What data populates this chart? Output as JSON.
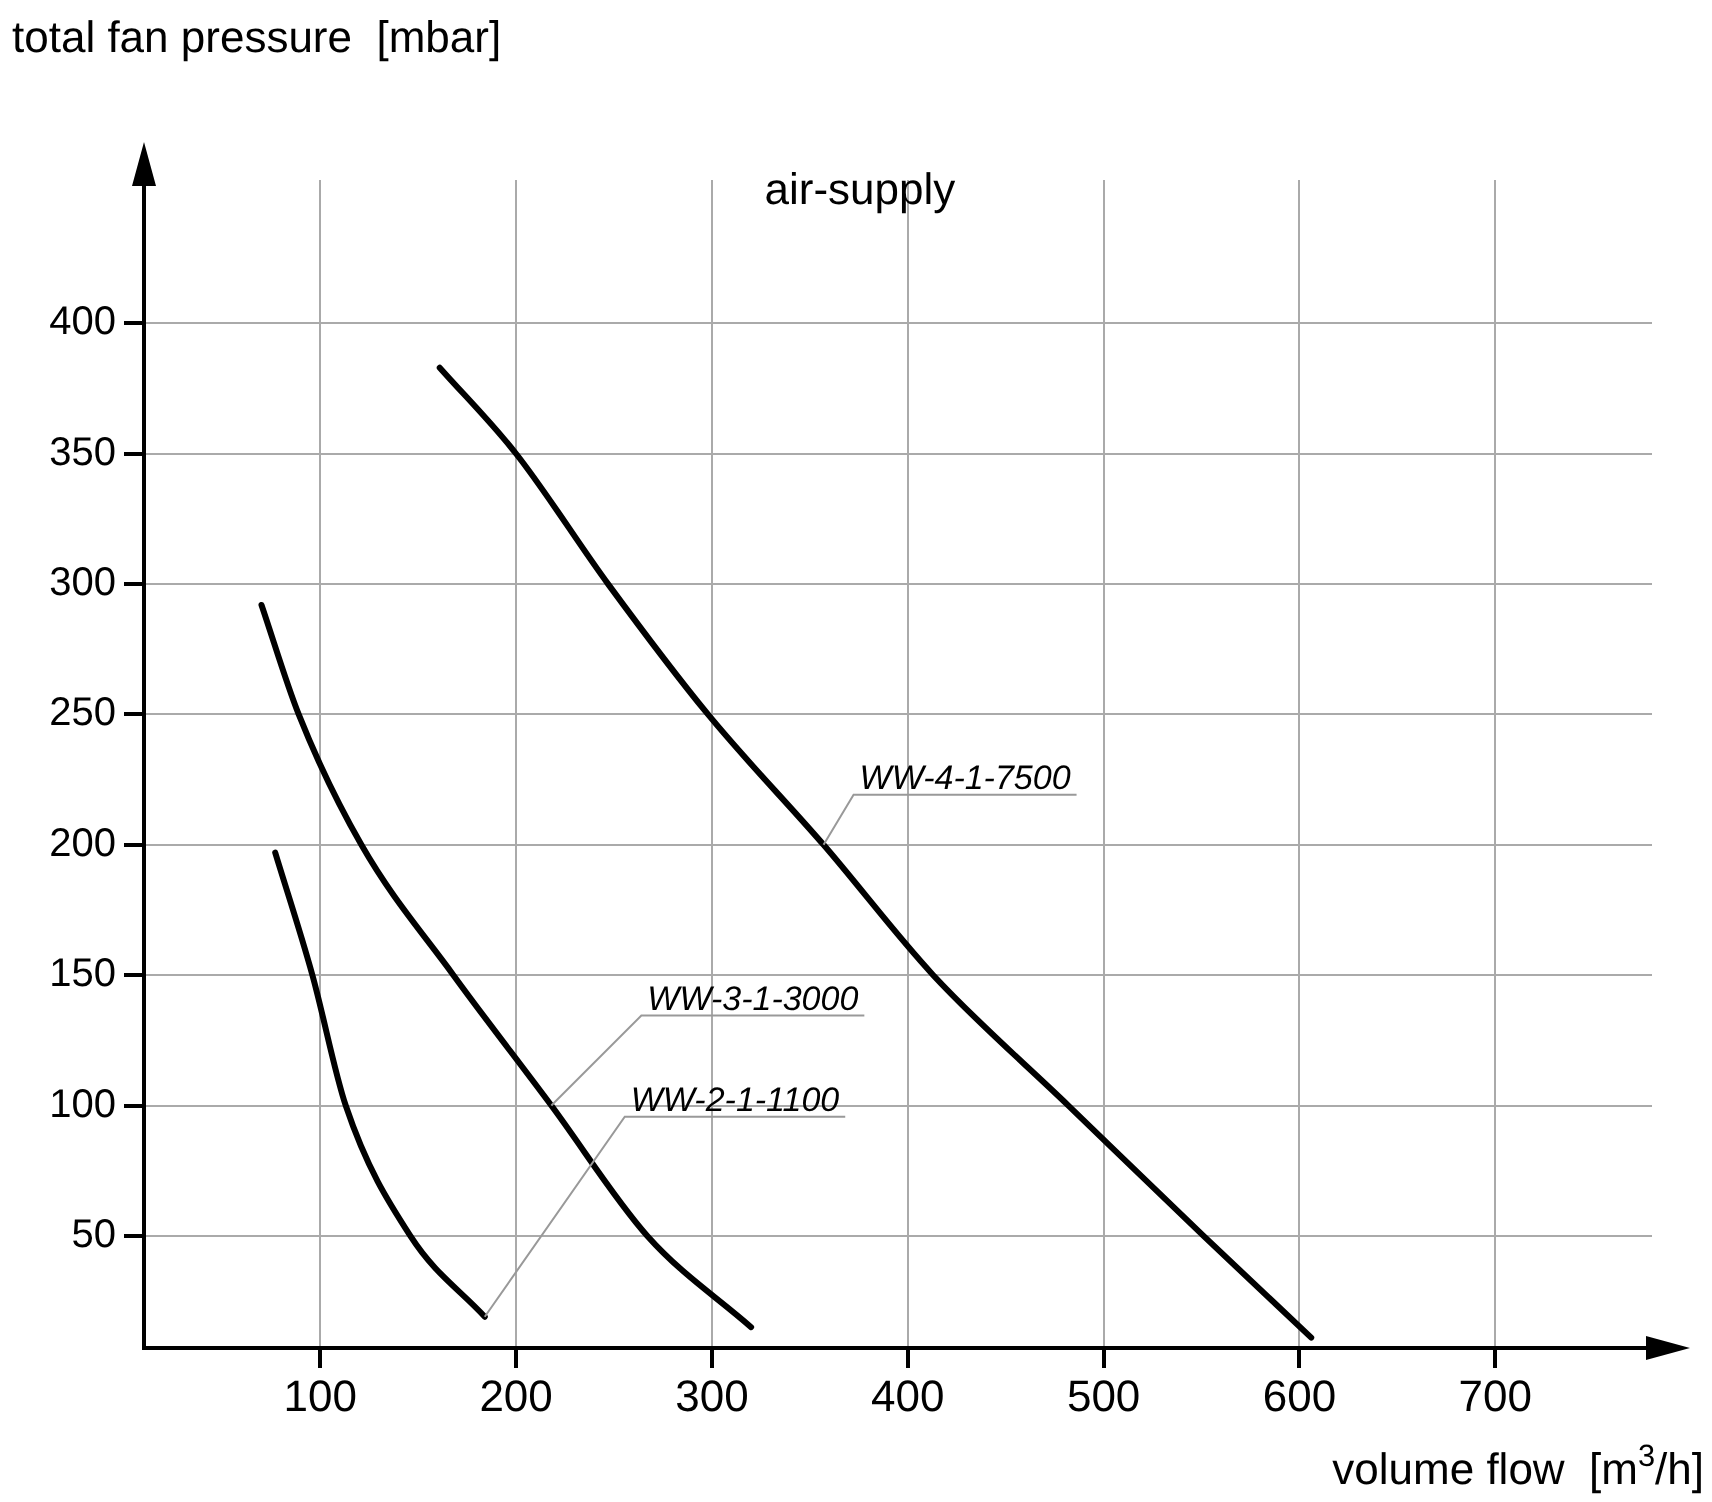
{
  "chart_data": {
    "type": "line",
    "title": "air-supply",
    "xlabel": "volume flow  [m$^{3}$/h]",
    "ylabel": "total fan pressure  [mbar]",
    "xlim": [
      10,
      780
    ],
    "ylim": [
      7,
      455
    ],
    "xticks": [
      100,
      200,
      300,
      400,
      500,
      600,
      700
    ],
    "yticks": [
      50,
      100,
      150,
      200,
      250,
      300,
      350,
      400
    ],
    "grid": true,
    "legend": false,
    "marker": "none",
    "line_style": "solid",
    "series": [
      {
        "name": "WW-4-1-7500",
        "color": "#000000",
        "x": [
          161,
          200,
          247,
          298,
          357,
          413,
          482,
          551,
          606
        ],
        "values": [
          383,
          350,
          300,
          250,
          200,
          150,
          100,
          50,
          11
        ]
      },
      {
        "name": "WW-3-1-3000",
        "color": "#000000",
        "x": [
          70,
          89,
          121,
          168,
          218,
          267,
          320
        ],
        "values": [
          292,
          250,
          200,
          150,
          100,
          50,
          15
        ]
      },
      {
        "name": "WW-2-1-1100",
        "color": "#000000",
        "x": [
          77,
          96,
          113,
          146,
          184
        ],
        "values": [
          197,
          150,
          100,
          50,
          19
        ]
      }
    ]
  }
}
